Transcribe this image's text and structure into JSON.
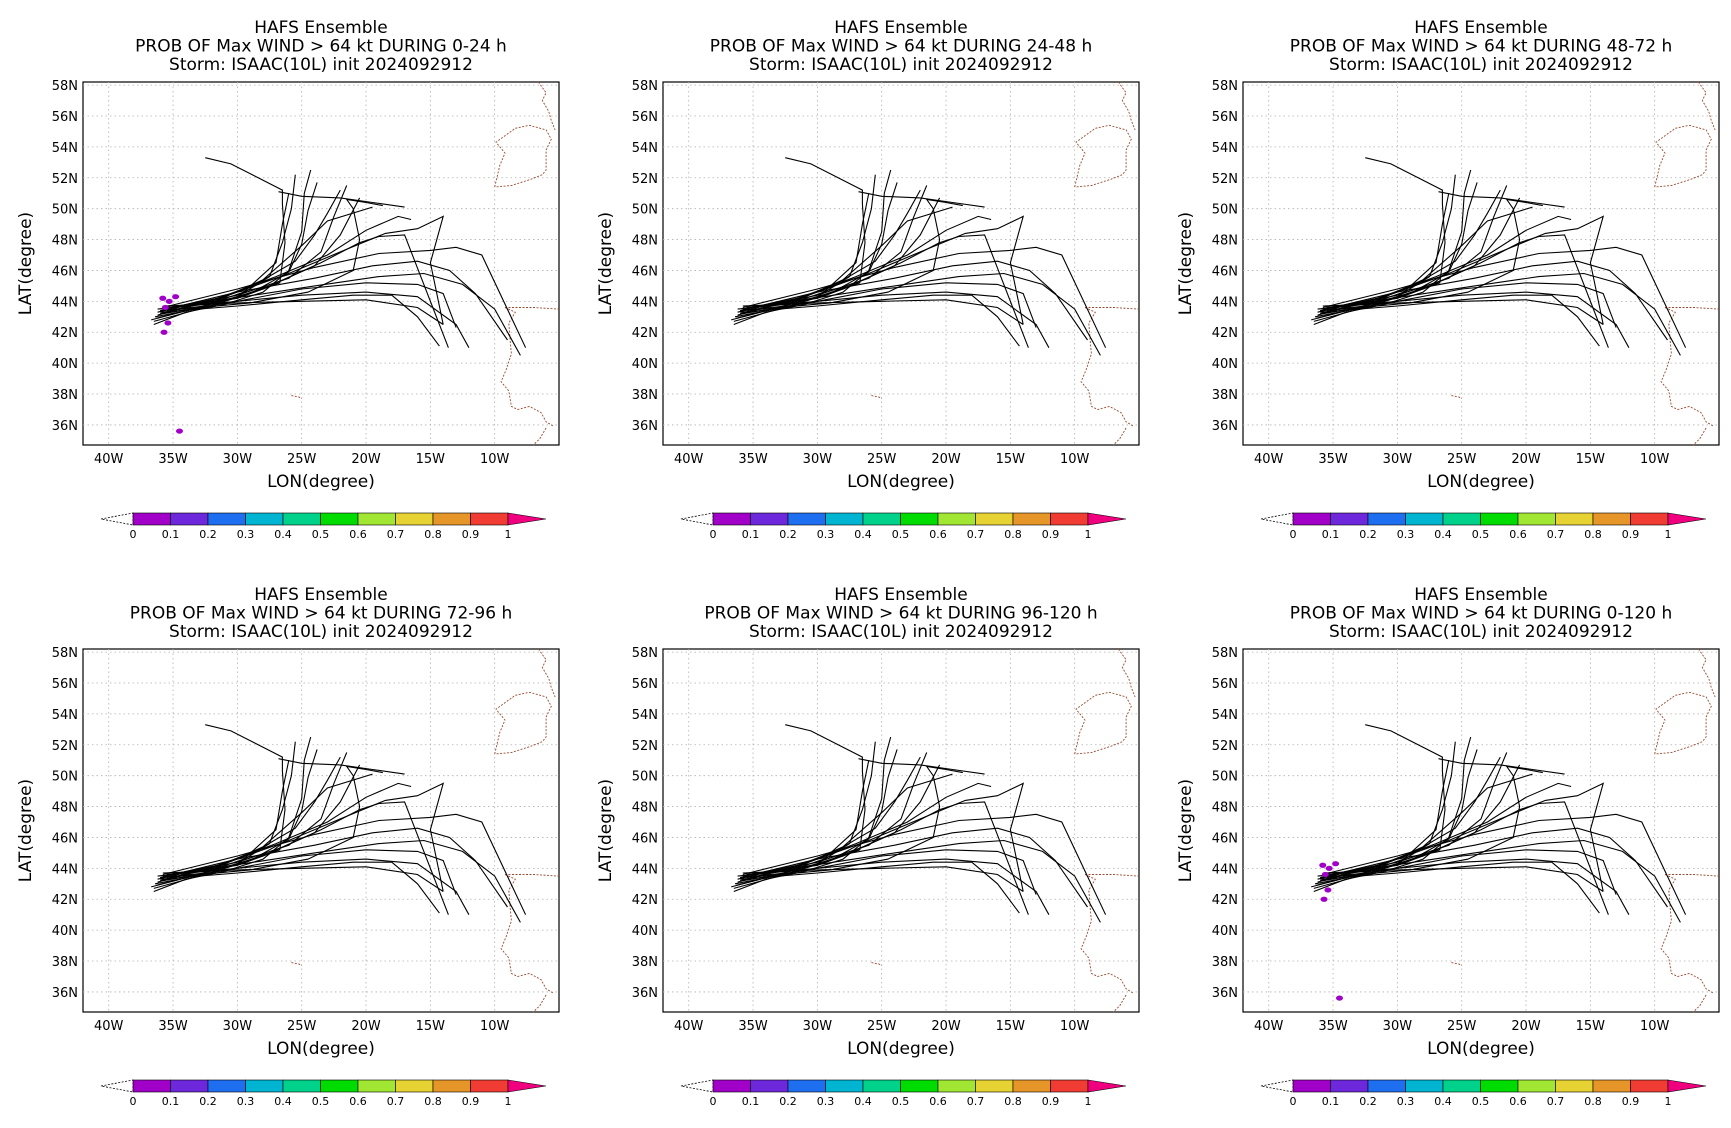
{
  "figure": {
    "kind": "ensemble wind-probability maps",
    "colorbar": {
      "labels": [
        "0",
        "0.1",
        "0.2",
        "0.3",
        "0.4",
        "0.5",
        "0.6",
        "0.7",
        "0.8",
        "0.9",
        "1"
      ],
      "colors": [
        "#a000c8",
        "#6e28dc",
        "#1e6ef0",
        "#00b4d2",
        "#00d28c",
        "#00dc00",
        "#a0e632",
        "#e6d232",
        "#e69628",
        "#f03c32",
        "#f0007f"
      ]
    },
    "tick_labels": {
      "lat": [
        "36N",
        "38N",
        "40N",
        "42N",
        "44N",
        "46N",
        "48N",
        "50N",
        "52N",
        "54N",
        "56N",
        "58N"
      ],
      "lon": [
        "40W",
        "35W",
        "30W",
        "25W",
        "20W",
        "15W",
        "10W"
      ]
    }
  },
  "chart_data": [
    {
      "type": "map",
      "title": [
        "HAFS Ensemble",
        "PROB OF Max WIND > 64 kt DURING  0-24 h",
        "Storm: ISAAC(10L) init 2024092912"
      ],
      "xlabel": "LON(degree)",
      "ylabel": "LAT(degree)",
      "xlim": [
        -42,
        -5
      ],
      "ylim": [
        34.7,
        58.2
      ],
      "grid": true,
      "probability_area": "present near 43-44N 35-36W, small spots near 42N 35.5W and 35.5N 34.5W"
    },
    {
      "type": "map",
      "title": [
        "HAFS Ensemble",
        "PROB OF Max WIND > 64 kt DURING 24-48 h",
        "Storm: ISAAC(10L) init 2024092912"
      ],
      "xlabel": "LON(degree)",
      "ylabel": "LAT(degree)",
      "xlim": [
        -42,
        -5
      ],
      "ylim": [
        34.7,
        58.2
      ],
      "grid": true,
      "probability_area": "none"
    },
    {
      "type": "map",
      "title": [
        "HAFS Ensemble",
        "PROB OF Max WIND > 64 kt DURING 48-72 h",
        "Storm: ISAAC(10L) init 2024092912"
      ],
      "xlabel": "LON(degree)",
      "ylabel": "LAT(degree)",
      "xlim": [
        -42,
        -5
      ],
      "ylim": [
        34.7,
        58.2
      ],
      "grid": true,
      "probability_area": "none"
    },
    {
      "type": "map",
      "title": [
        "HAFS Ensemble",
        "PROB OF Max WIND > 64 kt DURING 72-96 h",
        "Storm: ISAAC(10L) init 2024092912"
      ],
      "xlabel": "LON(degree)",
      "ylabel": "LAT(degree)",
      "xlim": [
        -42,
        -5
      ],
      "ylim": [
        34.7,
        58.2
      ],
      "grid": true,
      "probability_area": "none"
    },
    {
      "type": "map",
      "title": [
        "HAFS Ensemble",
        "PROB OF Max WIND > 64 kt DURING 96-120 h",
        "Storm: ISAAC(10L) init 2024092912"
      ],
      "xlabel": "LON(degree)",
      "ylabel": "LAT(degree)",
      "xlim": [
        -42,
        -5
      ],
      "ylim": [
        34.7,
        58.2
      ],
      "grid": true,
      "probability_area": "none"
    },
    {
      "type": "map",
      "title": [
        "HAFS Ensemble",
        "PROB OF Max WIND > 64 kt DURING 0-120 h",
        "Storm: ISAAC(10L) init 2024092912"
      ],
      "xlabel": "LON(degree)",
      "ylabel": "LAT(degree)",
      "xlim": [
        -42,
        -5
      ],
      "ylim": [
        34.7,
        58.2
      ],
      "grid": true,
      "probability_area": "present near 43-44N 35-36W, small spots near 42N 35.5W and 35.5N 34.5W"
    }
  ],
  "tracks": [
    [
      [
        -36.5,
        42.5
      ],
      [
        -34,
        43.3
      ],
      [
        -31,
        43.8
      ],
      [
        -28,
        44.6
      ],
      [
        -26,
        46
      ],
      [
        -25,
        48.5
      ],
      [
        -24.8,
        51
      ],
      [
        -24.3,
        52.5
      ]
    ],
    [
      [
        -36.3,
        42.9
      ],
      [
        -33.5,
        43.5
      ],
      [
        -30,
        44.3
      ],
      [
        -27.5,
        45.6
      ],
      [
        -26.5,
        47.8
      ],
      [
        -25.8,
        50
      ],
      [
        -25.5,
        52.2
      ]
    ],
    [
      [
        -36.7,
        42.8
      ],
      [
        -33,
        43.6
      ],
      [
        -29.5,
        44.6
      ],
      [
        -27,
        46.5
      ],
      [
        -26.5,
        49
      ],
      [
        -26,
        51
      ]
    ],
    [
      [
        -36,
        43.2
      ],
      [
        -33,
        43.8
      ],
      [
        -29,
        44.9
      ],
      [
        -25.5,
        46.6
      ],
      [
        -24,
        48.3
      ],
      [
        -23,
        49.7
      ],
      [
        -22,
        51.2
      ]
    ],
    [
      [
        -36.2,
        43.1
      ],
      [
        -33,
        43.9
      ],
      [
        -30,
        44.4
      ],
      [
        -26,
        45.5
      ],
      [
        -23.5,
        47.2
      ],
      [
        -22.5,
        49.5
      ],
      [
        -21.5,
        51.5
      ]
    ],
    [
      [
        -36,
        43.4
      ],
      [
        -32.5,
        43.7
      ],
      [
        -28,
        44.8
      ],
      [
        -24,
        46.3
      ],
      [
        -22,
        48.3
      ],
      [
        -20.5,
        50.7
      ]
    ],
    [
      [
        -35.5,
        43.6
      ],
      [
        -32,
        43.9
      ],
      [
        -28,
        45.4
      ],
      [
        -25,
        47.6
      ],
      [
        -23,
        49.2
      ],
      [
        -19.5,
        50.1
      ]
    ],
    [
      [
        -35.8,
        43.5
      ],
      [
        -31.5,
        44.2
      ],
      [
        -27,
        45.6
      ],
      [
        -23,
        47
      ],
      [
        -20,
        48.6
      ],
      [
        -17.5,
        49.5
      ],
      [
        -16.5,
        49.3
      ]
    ],
    [
      [
        -36.4,
        43
      ],
      [
        -32,
        43.7
      ],
      [
        -27.5,
        45
      ],
      [
        -23.5,
        46.5
      ],
      [
        -20.5,
        47.8
      ],
      [
        -19,
        48.2
      ],
      [
        -17,
        48.3
      ],
      [
        -13.6,
        41
      ]
    ],
    [
      [
        -36.2,
        43.3
      ],
      [
        -31,
        44.3
      ],
      [
        -26,
        45.8
      ],
      [
        -22,
        47.2
      ],
      [
        -18.5,
        48.4
      ],
      [
        -16,
        48.7
      ],
      [
        -14,
        49.5
      ],
      [
        -15,
        46.5
      ],
      [
        -14,
        42.5
      ]
    ],
    [
      [
        -35.8,
        43.6
      ],
      [
        -30,
        44.8
      ],
      [
        -24,
        46.2
      ],
      [
        -19,
        47.1
      ],
      [
        -15,
        47.3
      ],
      [
        -13,
        47.5
      ],
      [
        -11,
        47
      ],
      [
        -7.6,
        41
      ]
    ],
    [
      [
        -36,
        43.4
      ],
      [
        -30,
        44.6
      ],
      [
        -24,
        45.5
      ],
      [
        -19.5,
        46.3
      ],
      [
        -16,
        46.6
      ],
      [
        -13.5,
        46
      ],
      [
        -11.5,
        44.5
      ],
      [
        -9,
        41.5
      ]
    ],
    [
      [
        -35.5,
        43.6
      ],
      [
        -29.5,
        44.3
      ],
      [
        -24,
        45
      ],
      [
        -19,
        45.6
      ],
      [
        -15.5,
        45.8
      ],
      [
        -12.5,
        45.1
      ],
      [
        -10,
        43.5
      ],
      [
        -8,
        40.5
      ]
    ],
    [
      [
        -35.8,
        43.2
      ],
      [
        -30,
        44
      ],
      [
        -25,
        44.8
      ],
      [
        -20,
        45.2
      ],
      [
        -16,
        45.1
      ],
      [
        -14,
        44.5
      ],
      [
        -13,
        42.3
      ]
    ],
    [
      [
        -36.2,
        43.5
      ],
      [
        -30,
        44
      ],
      [
        -25,
        44.4
      ],
      [
        -20,
        44.6
      ],
      [
        -16,
        44.3
      ],
      [
        -13,
        42.5
      ],
      [
        -12,
        41
      ]
    ],
    [
      [
        -35.8,
        43.7
      ],
      [
        -30,
        43.9
      ],
      [
        -25,
        44
      ],
      [
        -20,
        44.1
      ],
      [
        -16,
        43.6
      ],
      [
        -14,
        42.5
      ]
    ],
    [
      [
        -36,
        43.3
      ],
      [
        -30,
        43.7
      ],
      [
        -25,
        44.1
      ],
      [
        -21,
        44.4
      ],
      [
        -18,
        44.4
      ],
      [
        -16,
        43
      ],
      [
        -14.3,
        41.1
      ]
    ],
    [
      [
        -35.5,
        43.4
      ],
      [
        -29,
        43.9
      ],
      [
        -24.5,
        44.6
      ],
      [
        -21,
        46
      ],
      [
        -20.5,
        48
      ],
      [
        -21,
        50
      ],
      [
        -21.5,
        50.6
      ],
      [
        -20,
        50.4
      ],
      [
        -18.7,
        50.2
      ]
    ],
    [
      [
        -35,
        43.6
      ],
      [
        -30,
        44.2
      ],
      [
        -26.7,
        45.2
      ],
      [
        -26.3,
        47.8
      ],
      [
        -26.5,
        50.3
      ],
      [
        -26.5,
        51.2
      ],
      [
        -30.5,
        52.9
      ],
      [
        -32.5,
        53.3
      ]
    ],
    [
      [
        -26.8,
        51.1
      ],
      [
        -25,
        50.8
      ],
      [
        -22,
        50.7
      ],
      [
        -19.5,
        50.4
      ],
      [
        -17,
        50.1
      ]
    ],
    [
      [
        -36.5,
        42.7
      ],
      [
        -33,
        43.5
      ],
      [
        -29,
        44.5
      ],
      [
        -26,
        45.9
      ],
      [
        -25,
        47.7
      ],
      [
        -24.5,
        49.9
      ],
      [
        -23.8,
        51.7
      ]
    ]
  ],
  "coast": [
    [
      [
        -10,
        51.4
      ],
      [
        -9.6,
        52.8
      ],
      [
        -9.2,
        53.6
      ],
      [
        -9.9,
        54.3
      ],
      [
        -8.4,
        55.2
      ],
      [
        -7.3,
        55.4
      ],
      [
        -6,
        55.1
      ],
      [
        -5.6,
        54.5
      ],
      [
        -6,
        53.8
      ],
      [
        -6,
        52.5
      ],
      [
        -6.3,
        52.2
      ],
      [
        -7.2,
        51.9
      ],
      [
        -8.7,
        51.5
      ],
      [
        -10,
        51.4
      ]
    ],
    [
      [
        -6.6,
        58.2
      ],
      [
        -6,
        57.5
      ],
      [
        -6.3,
        57
      ],
      [
        -5.8,
        56.3
      ],
      [
        -5.6,
        55.7
      ],
      [
        -5.3,
        55.1
      ]
    ],
    [
      [
        -9.2,
        43.6
      ],
      [
        -8.4,
        43.3
      ],
      [
        -8.9,
        42.6
      ],
      [
        -8.8,
        41.5
      ],
      [
        -8.7,
        40.6
      ],
      [
        -9.1,
        39.6
      ],
      [
        -9.5,
        38.8
      ],
      [
        -8.9,
        38.2
      ],
      [
        -8.7,
        37.2
      ],
      [
        -8.2,
        37
      ],
      [
        -7.3,
        37.2
      ],
      [
        -6.4,
        36.8
      ],
      [
        -6,
        36.2
      ],
      [
        -5.4,
        35.9
      ]
    ],
    [
      [
        -9.2,
        43.6
      ],
      [
        -8.4,
        43.6
      ],
      [
        -7,
        43.6
      ],
      [
        -5,
        43.5
      ]
    ],
    [
      [
        -6,
        35.8
      ],
      [
        -6.5,
        35.1
      ],
      [
        -7,
        34.7
      ]
    ],
    [
      [
        -25.8,
        37.9
      ],
      [
        -25.2,
        37.8
      ],
      [
        -25,
        37.7
      ]
    ]
  ],
  "prob_marks": [
    {
      "lon": -35.8,
      "lat": 44.2,
      "p": 0.05
    },
    {
      "lon": -35.3,
      "lat": 44.0,
      "p": 0.05
    },
    {
      "lon": -34.8,
      "lat": 44.3,
      "p": 0.05
    },
    {
      "lon": -35.6,
      "lat": 43.6,
      "p": 0.05
    },
    {
      "lon": -35.4,
      "lat": 42.6,
      "p": 0.05
    },
    {
      "lon": -35.7,
      "lat": 42.0,
      "p": 0.05
    },
    {
      "lon": -34.5,
      "lat": 35.6,
      "p": 0.05
    }
  ]
}
